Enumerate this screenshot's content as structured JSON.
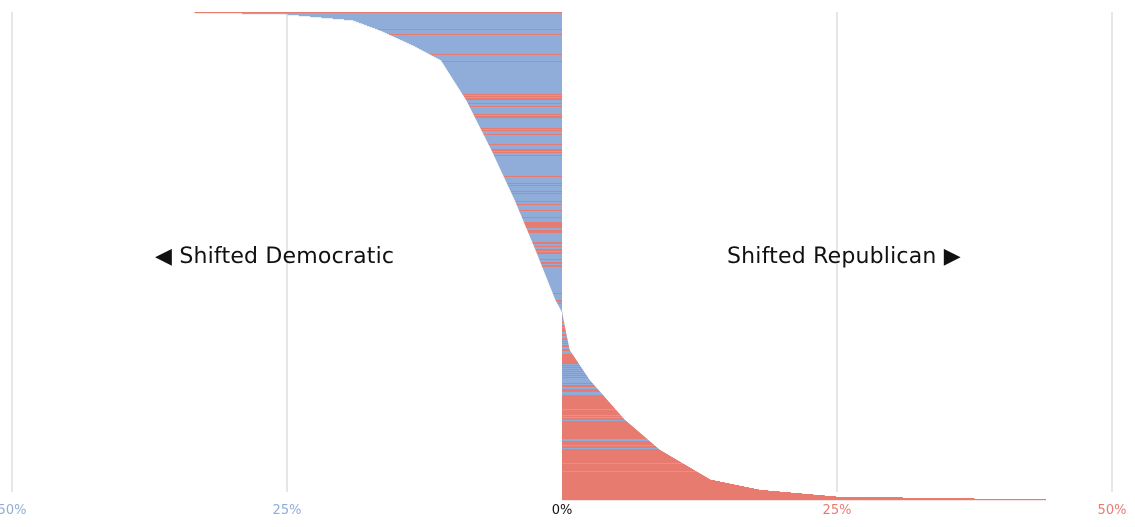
{
  "chart_data": {
    "type": "bar",
    "orientation": "horizontal",
    "description_note": "Sorted shift values, top to bottom; profile given as quantile/shift pairs",
    "profile": [
      [
        0.0,
        -33.4
      ],
      [
        0.004,
        -25
      ],
      [
        0.016,
        -19
      ],
      [
        0.037,
        -16.5
      ],
      [
        0.068,
        -13.5
      ],
      [
        0.098,
        -11
      ],
      [
        0.18,
        -8.7
      ],
      [
        0.283,
        -6.4
      ],
      [
        0.385,
        -4.3
      ],
      [
        0.488,
        -2.4
      ],
      [
        0.59,
        -0.6
      ],
      [
        0.615,
        0
      ],
      [
        0.693,
        0.7
      ],
      [
        0.754,
        2.5
      ],
      [
        0.836,
        5.7
      ],
      [
        0.898,
        8.9
      ],
      [
        0.959,
        13.5
      ],
      [
        0.98,
        18
      ],
      [
        0.994,
        25
      ],
      [
        1.0,
        44
      ]
    ],
    "xlim": [
      -50,
      50
    ],
    "ticks": [
      {
        "value": -50,
        "label": "50%",
        "color": "#8fadd8"
      },
      {
        "value": -25,
        "label": "25%",
        "color": "#8fadd8"
      },
      {
        "value": 0,
        "label": "0%",
        "color": "#111111"
      },
      {
        "value": 25,
        "label": "25%",
        "color": "#e87b70"
      },
      {
        "value": 50,
        "label": "50%",
        "color": "#e87b70"
      }
    ],
    "annotations": {
      "left": "Shifted Democratic",
      "right": "Shifted Republican"
    },
    "colors": {
      "democratic": "#8fadd8",
      "republican": "#e87b70",
      "grid": "#e6e6e6"
    },
    "grid": true
  }
}
